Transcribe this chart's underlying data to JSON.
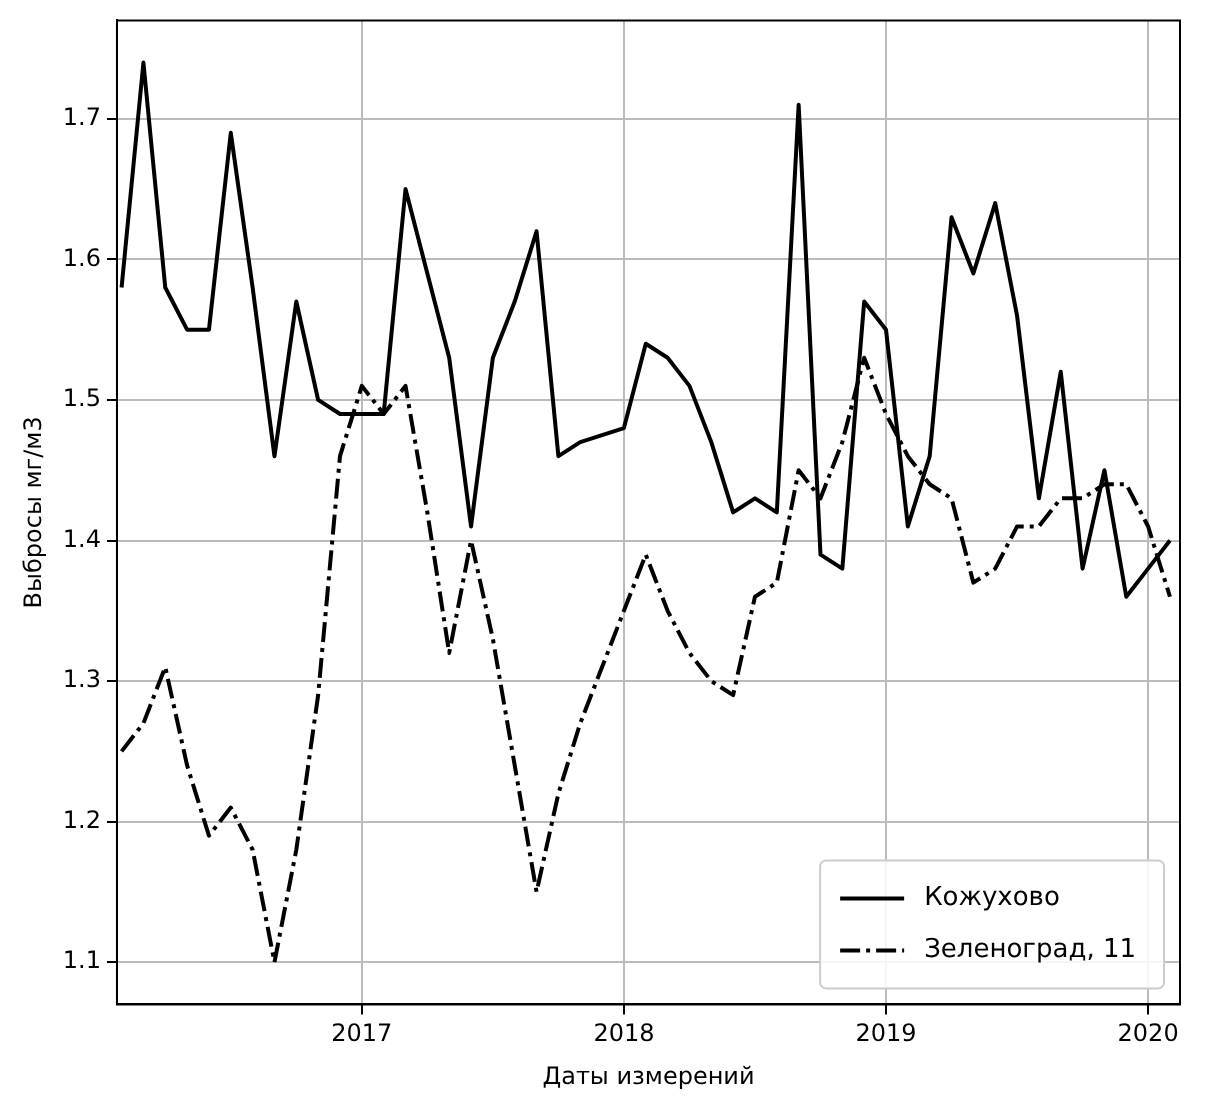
{
  "chart_data": {
    "type": "line",
    "xlabel": "Даты измерений",
    "ylabel": "Выбросы мг/м3",
    "x": [
      "2016-02",
      "2016-03",
      "2016-04",
      "2016-05",
      "2016-06",
      "2016-07",
      "2016-08",
      "2016-09",
      "2016-10",
      "2016-11",
      "2016-12",
      "2017-01",
      "2017-02",
      "2017-03",
      "2017-04",
      "2017-05",
      "2017-06",
      "2017-07",
      "2017-08",
      "2017-09",
      "2017-10",
      "2017-11",
      "2017-12",
      "2018-01",
      "2018-02",
      "2018-03",
      "2018-04",
      "2018-05",
      "2018-06",
      "2018-07",
      "2018-08",
      "2018-09",
      "2018-10",
      "2018-11",
      "2018-12",
      "2019-01",
      "2019-02",
      "2019-03",
      "2019-04",
      "2019-05",
      "2019-06",
      "2019-07",
      "2019-08",
      "2019-09",
      "2019-10",
      "2019-11",
      "2019-12",
      "2020-01",
      "2020-02"
    ],
    "series": [
      {
        "name": "Кожухово",
        "color": "#000000",
        "line_style": "solid",
        "values": [
          1.58,
          1.74,
          1.58,
          1.55,
          1.55,
          1.69,
          1.58,
          1.46,
          1.57,
          1.5,
          1.49,
          1.49,
          1.49,
          1.65,
          1.59,
          1.53,
          1.41,
          1.53,
          1.57,
          1.62,
          1.46,
          1.47,
          1.475,
          1.48,
          1.54,
          1.53,
          1.51,
          1.47,
          1.42,
          1.43,
          1.42,
          1.71,
          1.39,
          1.38,
          1.57,
          1.55,
          1.41,
          1.46,
          1.63,
          1.59,
          1.64,
          1.56,
          1.43,
          1.52,
          1.38,
          1.45,
          1.36,
          1.38,
          1.4
        ]
      },
      {
        "name": "Зеленоград, 11",
        "color": "#000000",
        "line_style": "dashdot",
        "values": [
          1.25,
          1.27,
          1.31,
          1.24,
          1.19,
          1.21,
          1.18,
          1.1,
          1.18,
          1.29,
          1.46,
          1.51,
          1.49,
          1.51,
          1.42,
          1.32,
          1.4,
          1.33,
          1.24,
          1.15,
          1.22,
          1.27,
          1.31,
          1.35,
          1.39,
          1.35,
          1.32,
          1.3,
          1.29,
          1.36,
          1.37,
          1.45,
          1.43,
          1.47,
          1.53,
          1.49,
          1.46,
          1.44,
          1.43,
          1.37,
          1.38,
          1.41,
          1.41,
          1.43,
          1.43,
          1.44,
          1.44,
          1.41,
          1.36
        ]
      }
    ],
    "xlim": [
      "2016-01-25",
      "2020-02-15"
    ],
    "xticks": [
      "2017",
      "2018",
      "2019",
      "2020"
    ],
    "ylim": [
      1.07,
      1.77
    ],
    "yticks": [
      1.1,
      1.2,
      1.3,
      1.4,
      1.5,
      1.6,
      1.7
    ],
    "grid": true,
    "legend": "bottom right"
  }
}
